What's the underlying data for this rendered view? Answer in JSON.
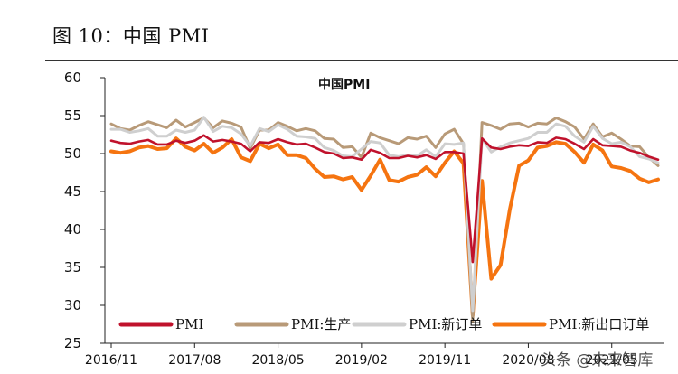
{
  "figure_title": "图 10：中国 PMI",
  "watermark": "头条 @未来智库",
  "colors": {
    "PMI": "#c0122c",
    "PMI:生产": "#b89a78",
    "PMI:新订单": "#cfcfcf",
    "PMI:新出口订单": "#f57410"
  },
  "chart_data": {
    "type": "line",
    "title": "中国PMI",
    "xlabel": "",
    "ylabel": "",
    "ylim": [
      25,
      60
    ],
    "yticks": [
      25,
      30,
      35,
      40,
      45,
      50,
      55,
      60
    ],
    "xtick_labels": [
      "2016/11",
      "2017/08",
      "2018/05",
      "2019/02",
      "2019/11",
      "2020/08",
      "2021/05"
    ],
    "legend_position": "bottom",
    "grid": false,
    "x": [
      "2016/11",
      "2016/12",
      "2017/01",
      "2017/02",
      "2017/03",
      "2017/04",
      "2017/05",
      "2017/06",
      "2017/07",
      "2017/08",
      "2017/09",
      "2017/10",
      "2017/11",
      "2017/12",
      "2018/01",
      "2018/02",
      "2018/03",
      "2018/04",
      "2018/05",
      "2018/06",
      "2018/07",
      "2018/08",
      "2018/09",
      "2018/10",
      "2018/11",
      "2018/12",
      "2019/01",
      "2019/02",
      "2019/03",
      "2019/04",
      "2019/05",
      "2019/06",
      "2019/07",
      "2019/08",
      "2019/09",
      "2019/10",
      "2019/11",
      "2019/12",
      "2020/01",
      "2020/02",
      "2020/03",
      "2020/04",
      "2020/05",
      "2020/06",
      "2020/07",
      "2020/08",
      "2020/09",
      "2020/10",
      "2020/11",
      "2020/12",
      "2021/01",
      "2021/02",
      "2021/03",
      "2021/04",
      "2021/05",
      "2021/06",
      "2021/07",
      "2021/08",
      "2021/09",
      "2021/10"
    ],
    "series": [
      {
        "name": "PMI",
        "values": [
          51.7,
          51.4,
          51.3,
          51.6,
          51.8,
          51.2,
          51.2,
          51.7,
          51.4,
          51.7,
          52.4,
          51.6,
          51.8,
          51.6,
          51.3,
          50.3,
          51.5,
          51.4,
          51.9,
          51.5,
          51.2,
          51.3,
          50.8,
          50.2,
          50.0,
          49.4,
          49.5,
          49.2,
          50.5,
          50.1,
          49.4,
          49.4,
          49.7,
          49.5,
          49.8,
          49.3,
          50.2,
          50.2,
          50.0,
          35.7,
          52.0,
          50.8,
          50.6,
          50.9,
          51.1,
          51.0,
          51.5,
          51.4,
          52.1,
          51.9,
          51.3,
          50.6,
          51.9,
          51.1,
          51.0,
          50.9,
          50.4,
          50.1,
          49.6,
          49.2
        ]
      },
      {
        "name": "PMI:生产",
        "values": [
          53.9,
          53.3,
          53.1,
          53.7,
          54.2,
          53.8,
          53.4,
          54.4,
          53.5,
          54.1,
          54.7,
          53.4,
          54.3,
          54.0,
          53.5,
          50.7,
          53.1,
          53.1,
          54.1,
          53.6,
          53.0,
          53.3,
          53.0,
          52.0,
          51.9,
          50.8,
          50.9,
          49.5,
          52.7,
          52.1,
          51.7,
          51.3,
          52.1,
          51.9,
          52.3,
          50.8,
          52.6,
          53.2,
          51.3,
          27.8,
          54.1,
          53.7,
          53.2,
          53.9,
          54.0,
          53.5,
          54.0,
          53.9,
          54.7,
          54.2,
          53.5,
          51.9,
          53.9,
          52.2,
          52.7,
          51.9,
          51.0,
          50.9,
          49.5,
          48.4
        ]
      },
      {
        "name": "PMI:新订单",
        "values": [
          53.2,
          53.2,
          52.8,
          53.0,
          53.3,
          52.3,
          52.3,
          53.1,
          52.8,
          53.1,
          54.8,
          52.9,
          53.6,
          53.4,
          52.6,
          51.0,
          53.3,
          52.9,
          53.8,
          53.2,
          52.3,
          52.2,
          52.0,
          50.8,
          50.4,
          49.7,
          49.6,
          50.6,
          51.6,
          51.4,
          49.8,
          49.6,
          49.8,
          49.7,
          50.5,
          49.6,
          51.3,
          51.2,
          51.4,
          29.3,
          52.0,
          50.2,
          50.9,
          51.4,
          51.7,
          52.0,
          52.8,
          52.8,
          53.9,
          53.6,
          52.3,
          51.5,
          53.6,
          52.0,
          51.3,
          51.5,
          50.9,
          49.6,
          49.3,
          48.8
        ]
      },
      {
        "name": "PMI:新出口订单",
        "values": [
          50.3,
          50.1,
          50.3,
          50.8,
          51.0,
          50.6,
          50.7,
          52.0,
          50.9,
          50.4,
          51.3,
          50.1,
          50.8,
          51.9,
          49.5,
          49.0,
          51.3,
          50.7,
          51.2,
          49.8,
          49.8,
          49.4,
          48.0,
          46.9,
          47.0,
          46.6,
          46.9,
          45.2,
          47.1,
          49.2,
          46.5,
          46.3,
          46.9,
          47.2,
          48.2,
          47.0,
          48.8,
          50.3,
          48.7,
          28.7,
          46.4,
          33.5,
          35.3,
          42.6,
          48.4,
          49.1,
          50.8,
          51.0,
          51.5,
          51.3,
          50.2,
          48.8,
          51.2,
          50.4,
          48.3,
          48.1,
          47.7,
          46.7,
          46.2,
          46.6
        ]
      }
    ]
  }
}
